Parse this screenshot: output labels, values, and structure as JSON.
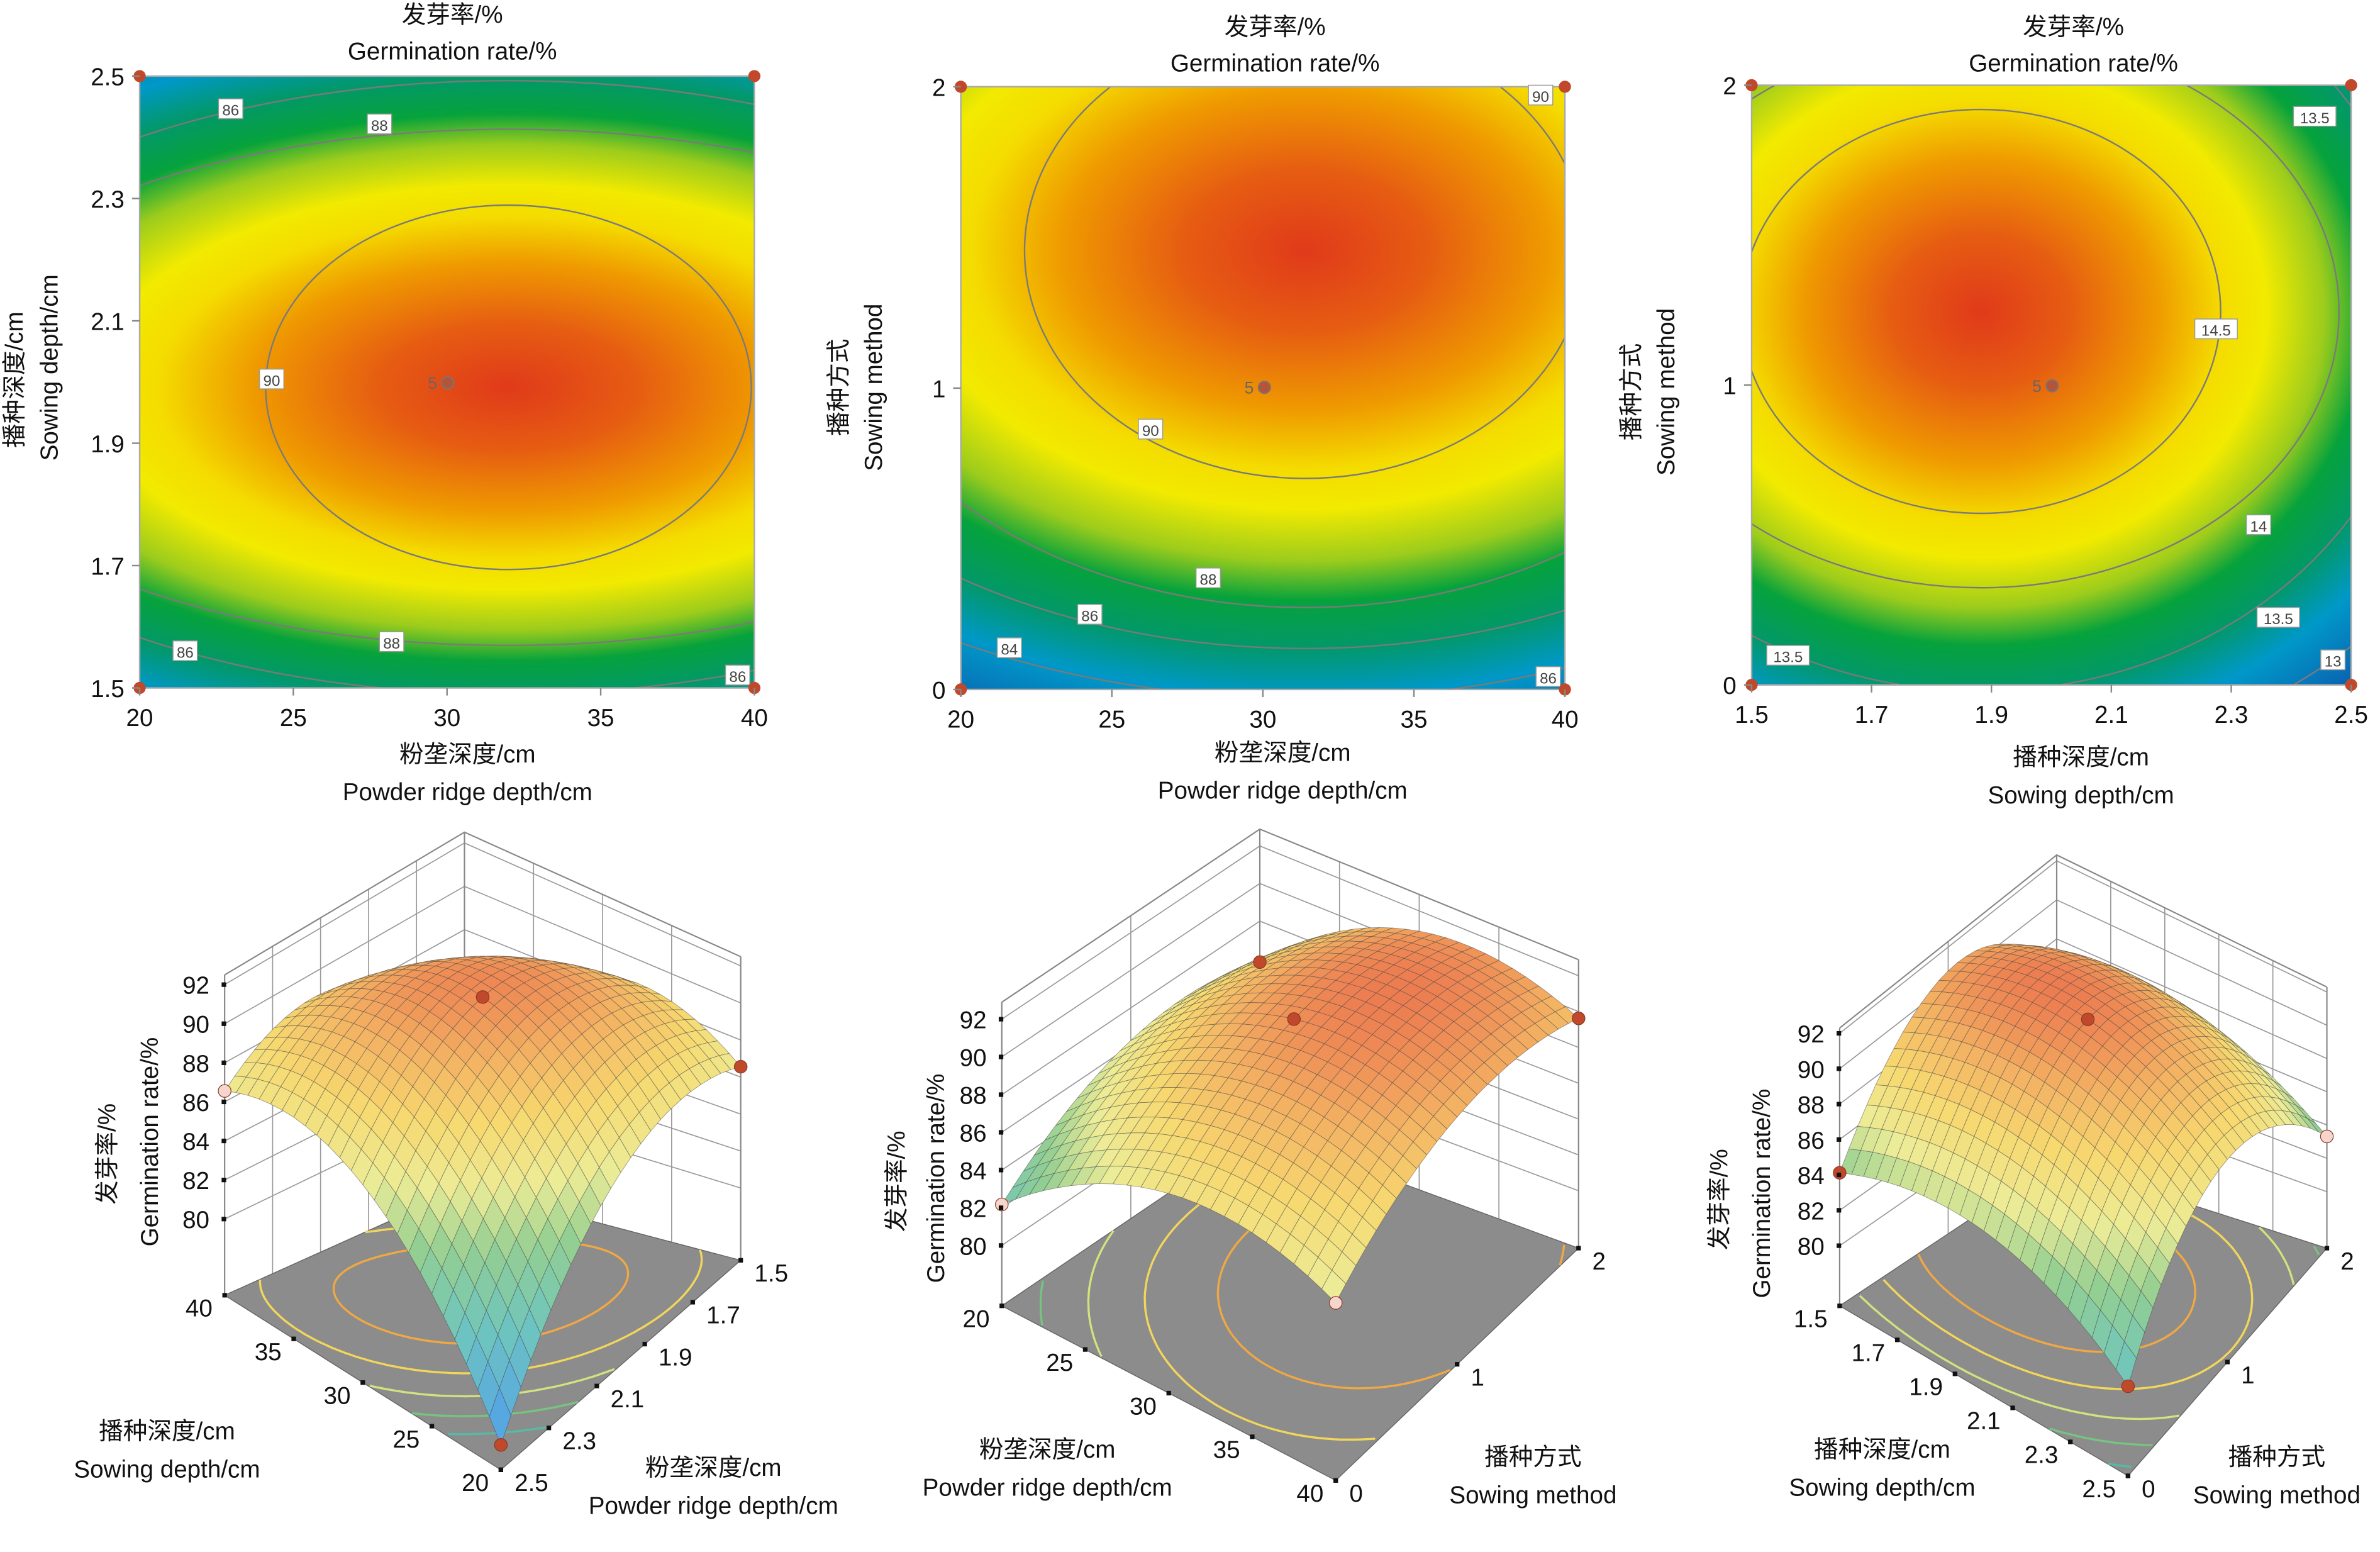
{
  "colors": {
    "design_point": "#c0492b",
    "design_point_light": "#f6d6cc",
    "contour_line": "#7a7a7a",
    "floor": "#8c8c8c",
    "wall_grid": "#9a9a9a"
  },
  "chart_data": [
    {
      "type": "contour",
      "title_cn": "发芽率/%",
      "title_en": "Germination rate/%",
      "xlabel_cn": "粉垄深度/cm",
      "xlabel_en": "Powder ridge depth/cm",
      "ylabel_cn": "播种深度/cm",
      "ylabel_en": "Sowing depth/cm",
      "xlim": [
        20,
        40
      ],
      "ylim": [
        1.5,
        2.5
      ],
      "x_ticks": [
        "20",
        "25",
        "30",
        "35",
        "40"
      ],
      "y_ticks": [
        "1.5",
        "1.7",
        "1.9",
        "2.1",
        "2.3",
        "2.5"
      ],
      "contour_labels": [
        "86",
        "88",
        "90",
        "88",
        "86",
        "86"
      ],
      "center_point_label": "5",
      "grid": false
    },
    {
      "type": "contour",
      "title_cn": "发芽率/%",
      "title_en": "Germination rate/%",
      "xlabel_cn": "粉垄深度/cm",
      "xlabel_en": "Powder ridge depth/cm",
      "ylabel_cn": "播种方式",
      "ylabel_en": "Sowing method",
      "xlim": [
        20,
        40
      ],
      "ylim": [
        0,
        2
      ],
      "x_ticks": [
        "20",
        "25",
        "30",
        "35",
        "40"
      ],
      "y_ticks": [
        "0",
        "1",
        "2"
      ],
      "contour_labels": [
        "90",
        "90",
        "88",
        "86",
        "86",
        "84"
      ],
      "center_point_label": "5",
      "grid": false
    },
    {
      "type": "contour",
      "title_cn": "发芽率/%",
      "title_en": "Germination rate/%",
      "xlabel_cn": "播种深度/cm",
      "xlabel_en": "Sowing depth/cm",
      "ylabel_cn": "播种方式",
      "ylabel_en": "Sowing method",
      "xlim": [
        1.5,
        2.5
      ],
      "ylim": [
        0,
        2
      ],
      "x_ticks": [
        "1.5",
        "1.7",
        "1.9",
        "2.1",
        "2.3",
        "2.5"
      ],
      "y_ticks": [
        "0",
        "1",
        "2"
      ],
      "contour_labels": [
        "13.5",
        "14.5",
        "14",
        "13.5",
        "13.5",
        "13"
      ],
      "center_point_label": "5",
      "grid": false
    },
    {
      "type": "surface",
      "zlabel_cn": "发芽率/%",
      "zlabel_en": "Germination rate/%",
      "z_ticks": [
        "80",
        "82",
        "84",
        "86",
        "88",
        "90",
        "92"
      ],
      "left_axis": {
        "label_cn": "播种深度/cm",
        "label_en": "Sowing depth/cm",
        "ticks": [
          "40",
          "35",
          "30",
          "25",
          "20"
        ]
      },
      "right_axis": {
        "label_cn": "粉垄深度/cm",
        "label_en": "Powder ridge depth/cm",
        "ticks": [
          "1.5",
          "1.7",
          "1.9",
          "2.1",
          "2.3",
          "2.5"
        ]
      }
    },
    {
      "type": "surface",
      "zlabel_cn": "发芽率/%",
      "zlabel_en": "Germination rate/%",
      "z_ticks": [
        "80",
        "82",
        "84",
        "86",
        "88",
        "90",
        "92"
      ],
      "left_axis": {
        "label_cn": "粉垄深度/cm",
        "label_en": "Powder ridge depth/cm",
        "ticks": [
          "20",
          "25",
          "30",
          "35",
          "40"
        ]
      },
      "right_axis": {
        "label_cn": "播种方式",
        "label_en": "Sowing method",
        "ticks": [
          "0",
          "1",
          "2"
        ]
      }
    },
    {
      "type": "surface",
      "zlabel_cn": "发芽率/%",
      "zlabel_en": "Germination rate/%",
      "z_ticks": [
        "80",
        "82",
        "84",
        "86",
        "88",
        "90",
        "92"
      ],
      "left_axis": {
        "label_cn": "播种深度/cm",
        "label_en": "Sowing depth/cm",
        "ticks": [
          "1.5",
          "1.7",
          "1.9",
          "2.1",
          "2.3",
          "2.5"
        ]
      },
      "right_axis": {
        "label_cn": "播种方式",
        "label_en": "Sowing method",
        "ticks": [
          "0",
          "1",
          "2"
        ]
      }
    }
  ]
}
